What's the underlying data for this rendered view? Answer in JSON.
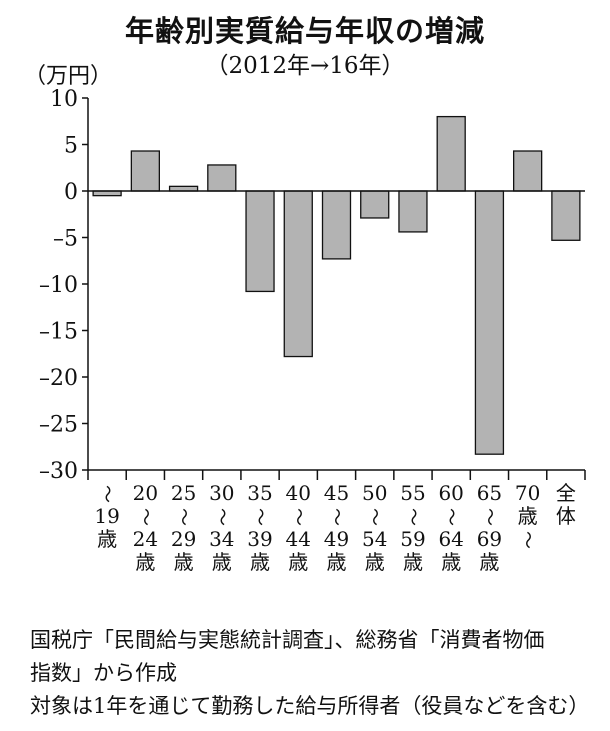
{
  "chart_data": {
    "type": "bar",
    "title": "年齢別実質給与年収の増減",
    "subtitle": "（2012年→16年）",
    "ylabel": "（万円）",
    "ylim": [
      -30,
      10
    ],
    "yticks": [
      10,
      5,
      0,
      -5,
      -10,
      -15,
      -20,
      -25,
      -30
    ],
    "ytick_labels": [
      "10",
      "5",
      "0",
      "–5",
      "–10",
      "–15",
      "–20",
      "–25",
      "–30"
    ],
    "categories": [
      [
        "〜",
        "19",
        "歳"
      ],
      [
        "20",
        "〜",
        "24",
        "歳"
      ],
      [
        "25",
        "〜",
        "29",
        "歳"
      ],
      [
        "30",
        "〜",
        "34",
        "歳"
      ],
      [
        "35",
        "〜",
        "39",
        "歳"
      ],
      [
        "40",
        "〜",
        "44",
        "歳"
      ],
      [
        "45",
        "〜",
        "49",
        "歳"
      ],
      [
        "50",
        "〜",
        "54",
        "歳"
      ],
      [
        "55",
        "〜",
        "59",
        "歳"
      ],
      [
        "60",
        "〜",
        "64",
        "歳"
      ],
      [
        "65",
        "〜",
        "69",
        "歳"
      ],
      [
        "70",
        "歳",
        "〜"
      ],
      [
        "全",
        "体"
      ]
    ],
    "values": [
      -0.5,
      4.3,
      0.5,
      2.8,
      -10.8,
      -17.8,
      -7.3,
      -2.9,
      -4.4,
      8.0,
      -28.3,
      4.3,
      -5.3
    ],
    "bar_color": "#b3b3b3",
    "grid": false
  },
  "notes": [
    "国税庁「民間給与実態統計調査」、総務省「消費者物価",
    "指数」から作成",
    "対象は1年を通じて勤務した給与所得者（役員などを含む）"
  ]
}
